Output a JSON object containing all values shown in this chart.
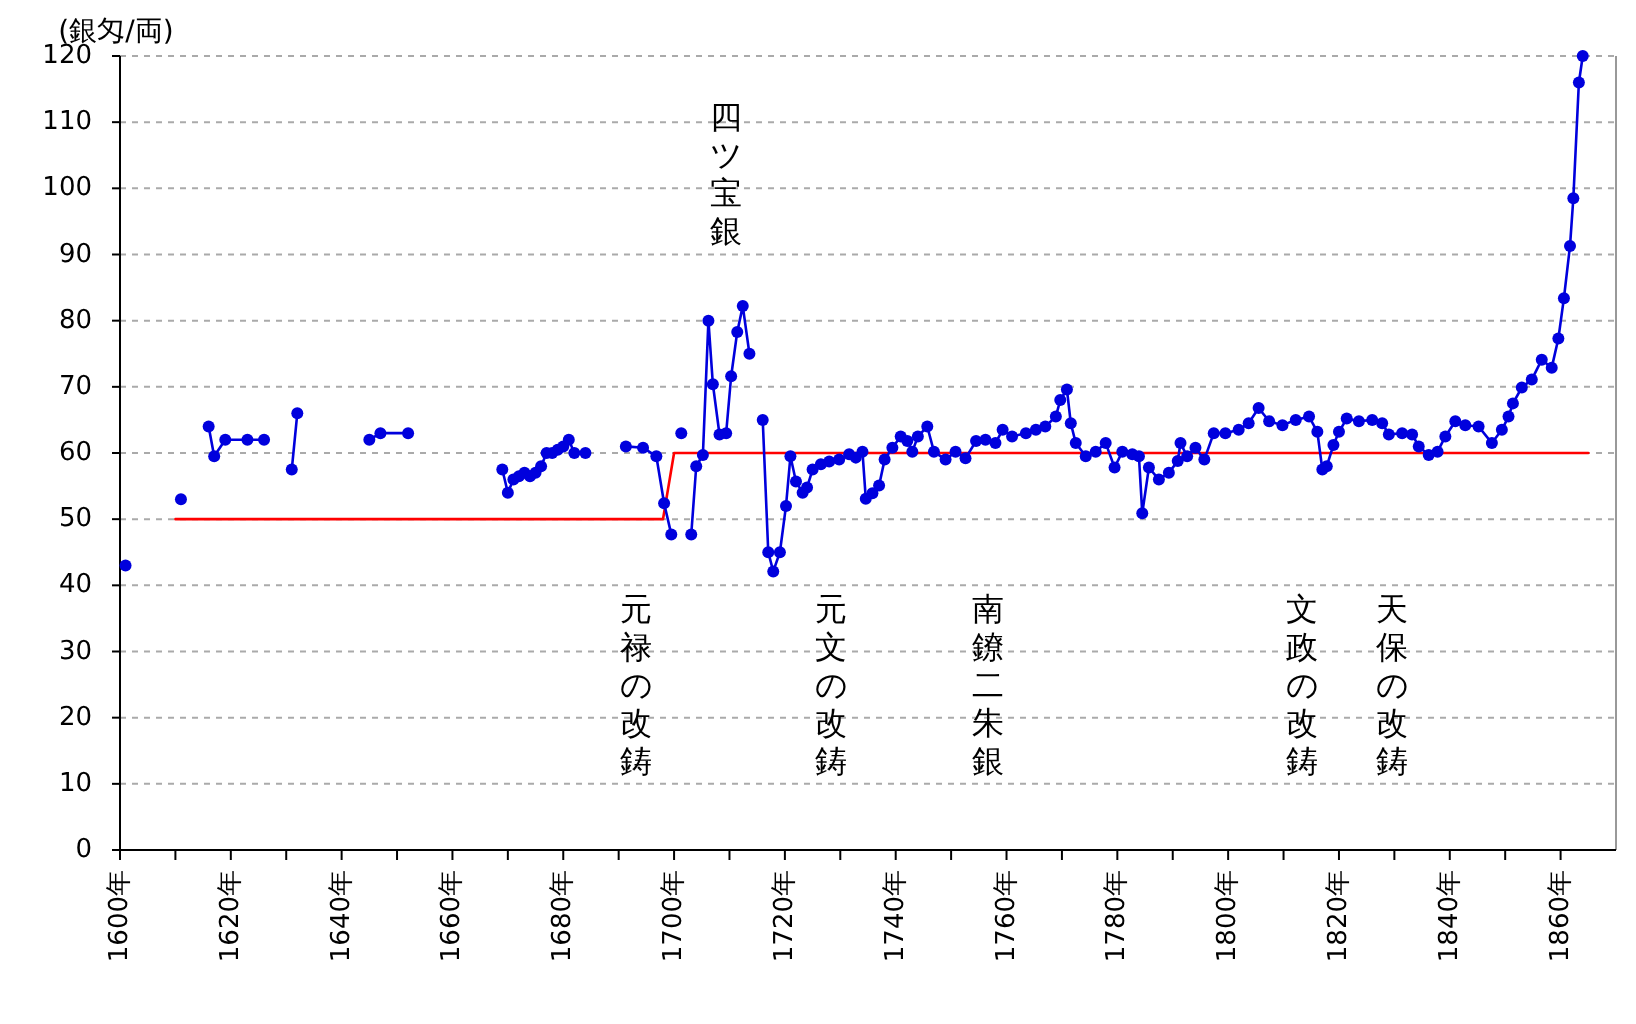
{
  "chart_data": {
    "type": "line",
    "ylabel": "(銀匁/両)",
    "xlim": [
      1600,
      1870
    ],
    "ylim": [
      0,
      120
    ],
    "xticks": [
      {
        "value": 1600,
        "label": "1600年"
      },
      {
        "value": 1610,
        "label": null
      },
      {
        "value": 1620,
        "label": "1620年"
      },
      {
        "value": 1630,
        "label": null
      },
      {
        "value": 1640,
        "label": "1640年"
      },
      {
        "value": 1650,
        "label": null
      },
      {
        "value": 1660,
        "label": "1660年"
      },
      {
        "value": 1670,
        "label": null
      },
      {
        "value": 1680,
        "label": "1680年"
      },
      {
        "value": 1690,
        "label": null
      },
      {
        "value": 1700,
        "label": "1700年"
      },
      {
        "value": 1710,
        "label": null
      },
      {
        "value": 1720,
        "label": "1720年"
      },
      {
        "value": 1730,
        "label": null
      },
      {
        "value": 1740,
        "label": "1740年"
      },
      {
        "value": 1750,
        "label": null
      },
      {
        "value": 1760,
        "label": "1760年"
      },
      {
        "value": 1770,
        "label": null
      },
      {
        "value": 1780,
        "label": "1780年"
      },
      {
        "value": 1790,
        "label": null
      },
      {
        "value": 1800,
        "label": "1800年"
      },
      {
        "value": 1810,
        "label": null
      },
      {
        "value": 1820,
        "label": "1820年"
      },
      {
        "value": 1830,
        "label": null
      },
      {
        "value": 1840,
        "label": "1840年"
      },
      {
        "value": 1850,
        "label": null
      },
      {
        "value": 1860,
        "label": "1860年"
      }
    ],
    "yticks": [
      0,
      10,
      20,
      30,
      40,
      50,
      60,
      70,
      80,
      90,
      100,
      110,
      120
    ],
    "grid": "y",
    "marker": "circle",
    "line_style": "solid",
    "series": [
      {
        "color": "#ff0000",
        "marker": "none",
        "x": [
          1610,
          1698,
          1700,
          1865
        ],
        "values": [
          50,
          50,
          60,
          60
        ]
      },
      {
        "color": "#0000dd",
        "x": [
          1601,
          1606,
          1611,
          1613,
          1616,
          1617,
          1619,
          1623,
          1626,
          1628,
          1631,
          1632,
          1640,
          1645,
          1647,
          1652,
          1660,
          1669,
          1670,
          1671,
          1672,
          1673,
          1674,
          1675,
          1676,
          1677,
          1678,
          1679,
          1680,
          1681,
          1682,
          1684,
          1688,
          1691.3,
          1694.4,
          1696.8,
          1698.2,
          1699.5,
          1700.4,
          1701.3,
          1702.2,
          1703.1,
          1704,
          1705.2,
          1706.2,
          1707,
          1708.2,
          1709.4,
          1710.3,
          1711.4,
          1712.4,
          1713.6,
          1715,
          1716,
          1717,
          1717.9,
          1719.1,
          1720.2,
          1721,
          1722,
          1723.2,
          1724,
          1725,
          1726.5,
          1728,
          1729.8,
          1731.6,
          1732.8,
          1734,
          1734.6,
          1735.8,
          1737,
          1738,
          1739.4,
          1740.9,
          1742.1,
          1743,
          1744,
          1745.7,
          1746.9,
          1749,
          1750.8,
          1752.6,
          1754.5,
          1756.2,
          1758,
          1759.3,
          1761,
          1763.5,
          1765.3,
          1767,
          1768.9,
          1769.7,
          1770.9,
          1771.6,
          1772.5,
          1774.3,
          1776.1,
          1777.9,
          1779.5,
          1780.9,
          1782.7,
          1783.9,
          1784.5,
          1785.7,
          1787.5,
          1789.3,
          1790.9,
          1791.4,
          1792.6,
          1794.1,
          1795.7,
          1797.4,
          1799.5,
          1801.9,
          1803.7,
          1805.5,
          1807.4,
          1809.8,
          1812.2,
          1814.6,
          1816.1,
          1817,
          1817.8,
          1819,
          1820,
          1821.4,
          1823.6,
          1826,
          1827.8,
          1829,
          1831.4,
          1833.2,
          1834.4,
          1836.2,
          1837.8,
          1839.2,
          1841,
          1842.8,
          1845.2,
          1847.6,
          1849.4,
          1850.6,
          1851.4,
          1853,
          1854.8,
          1856.6,
          1858.4,
          1859.6,
          1860.6,
          1861.7,
          1862.3,
          1863.3,
          1864
        ],
        "values": [
          43,
          null,
          53,
          null,
          64,
          59.5,
          62,
          62,
          62,
          null,
          57.5,
          66,
          null,
          62,
          63,
          63,
          null,
          57.5,
          54,
          56,
          56.5,
          57,
          56.5,
          57,
          58,
          60,
          60,
          60.5,
          61,
          62,
          60,
          60,
          null,
          61,
          60.8,
          59.5,
          52.4,
          47.7,
          null,
          63,
          null,
          47.7,
          58,
          59.7,
          80,
          70.4,
          62.8,
          63,
          71.6,
          78.3,
          82.2,
          75,
          null,
          65,
          45,
          42.1,
          45,
          52,
          59.5,
          55.7,
          54,
          54.8,
          57.5,
          58.3,
          58.7,
          59,
          59.8,
          59.3,
          60.2,
          53.1,
          53.9,
          55.1,
          59,
          60.8,
          62.5,
          61.8,
          60.2,
          62.5,
          64,
          60.2,
          59,
          60.2,
          59.2,
          61.8,
          62,
          61.5,
          63.5,
          62.5,
          63,
          63.5,
          64,
          65.5,
          68,
          69.6,
          64.5,
          61.5,
          59.5,
          60.2,
          61.5,
          57.8,
          60.2,
          59.8,
          59.5,
          50.9,
          57.8,
          56,
          57,
          58.8,
          61.5,
          59.5,
          60.8,
          59,
          63,
          63,
          63.5,
          64.5,
          66.8,
          64.8,
          64.2,
          65,
          65.5,
          63.2,
          57.5,
          58,
          61.2,
          63.2,
          65.2,
          64.8,
          65,
          64.5,
          62.8,
          63,
          62.8,
          61,
          59.7,
          60.2,
          62.5,
          64.8,
          64.2,
          64,
          61.5,
          63.5,
          65.5,
          67.5,
          69.9,
          71.1,
          74.1,
          72.9,
          77.3,
          83.4,
          91.3,
          98.5,
          116,
          120
        ]
      }
    ],
    "annotations": [
      "四ツ宝銀",
      "元禄の改鋳",
      "元文の改鋳",
      "南鐐二朱銀",
      "文政の改鋳",
      "天保の改鋳"
    ]
  }
}
